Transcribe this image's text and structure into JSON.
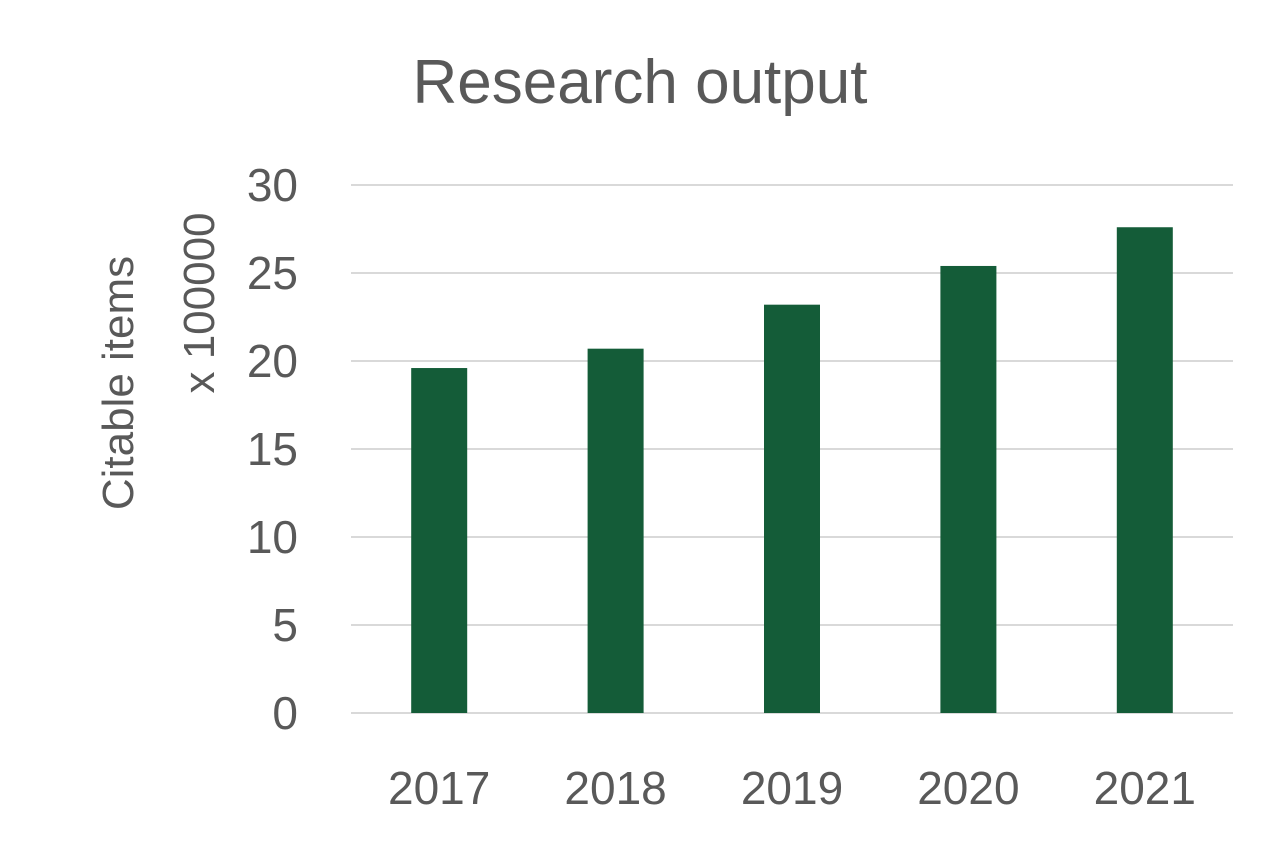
{
  "chart_data": {
    "type": "bar",
    "title": "Research output",
    "xlabel": "",
    "ylabel_lines": [
      "Citable items",
      "x 100000"
    ],
    "categories": [
      "2017",
      "2018",
      "2019",
      "2020",
      "2021"
    ],
    "values": [
      19.6,
      20.7,
      23.2,
      25.4,
      27.6
    ],
    "ylim": [
      0,
      30
    ],
    "yticks": [
      0,
      5,
      10,
      15,
      20,
      25,
      30
    ],
    "grid": true,
    "legend": "none",
    "bar_color": "#145c38"
  }
}
